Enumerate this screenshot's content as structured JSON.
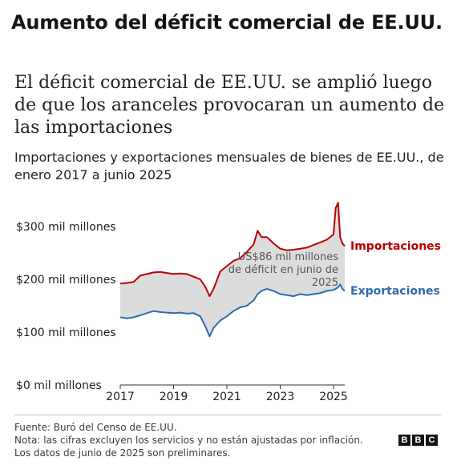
{
  "header": {
    "title": "Aumento del déficit comercial de EE.UU."
  },
  "chart_data": {
    "type": "line",
    "title": "El déficit comercial de EE.UU. se amplió luego de que los aranceles provocaran un aumento de las importaciones",
    "subtitle": "Importaciones y exportaciones mensuales de bienes de EE.UU., de enero 2017 a junio 2025",
    "y_ticks": [
      "$300 mil millones",
      "$200 mil millones",
      "$100 mil millones",
      "$0 mil millones"
    ],
    "y_tick_values": [
      300,
      200,
      100,
      0
    ],
    "x_ticks": [
      "2017",
      "2019",
      "2021",
      "2023",
      "2025"
    ],
    "ylim": [
      0,
      350
    ],
    "grid": false,
    "series": [
      {
        "name": "Importaciones",
        "color": "#b80000",
        "points": [
          [
            2017.0,
            192
          ],
          [
            2017.25,
            193
          ],
          [
            2017.5,
            195
          ],
          [
            2017.75,
            207
          ],
          [
            2018.0,
            210
          ],
          [
            2018.25,
            213
          ],
          [
            2018.5,
            214
          ],
          [
            2018.75,
            212
          ],
          [
            2019.0,
            210
          ],
          [
            2019.25,
            211
          ],
          [
            2019.5,
            210
          ],
          [
            2019.75,
            205
          ],
          [
            2020.0,
            200
          ],
          [
            2020.2,
            185
          ],
          [
            2020.35,
            168
          ],
          [
            2020.5,
            182
          ],
          [
            2020.75,
            215
          ],
          [
            2021.0,
            225
          ],
          [
            2021.25,
            235
          ],
          [
            2021.5,
            240
          ],
          [
            2021.75,
            252
          ],
          [
            2022.0,
            266
          ],
          [
            2022.15,
            292
          ],
          [
            2022.3,
            280
          ],
          [
            2022.5,
            280
          ],
          [
            2022.75,
            268
          ],
          [
            2023.0,
            258
          ],
          [
            2023.25,
            255
          ],
          [
            2023.5,
            256
          ],
          [
            2023.75,
            258
          ],
          [
            2024.0,
            260
          ],
          [
            2024.25,
            265
          ],
          [
            2024.5,
            270
          ],
          [
            2024.75,
            275
          ],
          [
            2025.0,
            285
          ],
          [
            2025.08,
            335
          ],
          [
            2025.17,
            345
          ],
          [
            2025.25,
            280
          ],
          [
            2025.33,
            268
          ],
          [
            2025.42,
            263
          ]
        ]
      },
      {
        "name": "Exportaciones",
        "color": "#2e6bb0",
        "points": [
          [
            2017.0,
            128
          ],
          [
            2017.25,
            126
          ],
          [
            2017.5,
            128
          ],
          [
            2017.75,
            132
          ],
          [
            2018.0,
            136
          ],
          [
            2018.25,
            140
          ],
          [
            2018.5,
            138
          ],
          [
            2018.75,
            137
          ],
          [
            2019.0,
            136
          ],
          [
            2019.25,
            137
          ],
          [
            2019.5,
            135
          ],
          [
            2019.75,
            136
          ],
          [
            2020.0,
            130
          ],
          [
            2020.2,
            110
          ],
          [
            2020.35,
            92
          ],
          [
            2020.5,
            108
          ],
          [
            2020.75,
            122
          ],
          [
            2021.0,
            130
          ],
          [
            2021.25,
            140
          ],
          [
            2021.5,
            147
          ],
          [
            2021.75,
            150
          ],
          [
            2022.0,
            160
          ],
          [
            2022.15,
            172
          ],
          [
            2022.3,
            178
          ],
          [
            2022.5,
            182
          ],
          [
            2022.75,
            178
          ],
          [
            2023.0,
            172
          ],
          [
            2023.25,
            170
          ],
          [
            2023.5,
            168
          ],
          [
            2023.75,
            172
          ],
          [
            2024.0,
            170
          ],
          [
            2024.25,
            172
          ],
          [
            2024.5,
            174
          ],
          [
            2024.75,
            178
          ],
          [
            2025.0,
            180
          ],
          [
            2025.08,
            182
          ],
          [
            2025.17,
            185
          ],
          [
            2025.25,
            190
          ],
          [
            2025.33,
            182
          ],
          [
            2025.42,
            178
          ]
        ]
      }
    ],
    "annotation": [
      "US$86 mil millones",
      "de déficit en junio de",
      "2025"
    ]
  },
  "footer": {
    "source": "Fuente: Buró del Censo de EE.UU.",
    "note": "Nota: las cifras excluyen los servicios y no están ajustadas por inflación.",
    "note2": "Los datos de junio de 2025 son preliminares."
  },
  "logo": {
    "letters": [
      "B",
      "B",
      "C"
    ]
  }
}
